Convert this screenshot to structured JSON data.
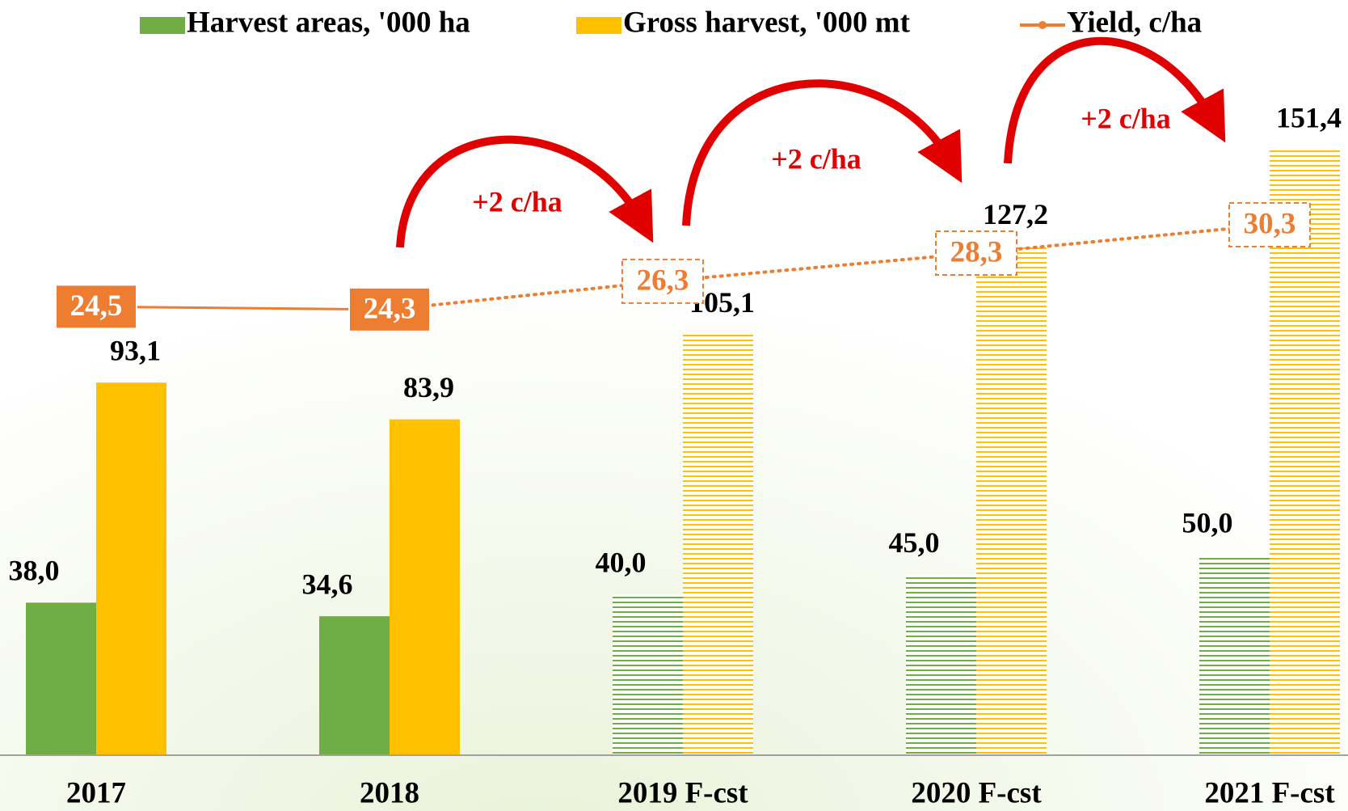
{
  "chart_data": {
    "type": "bar",
    "categories": [
      "2017",
      "2018",
      "2019 F-cst",
      "2020 F-cst",
      "2021 F-cst"
    ],
    "forecast": [
      false,
      false,
      true,
      true,
      true
    ],
    "series": [
      {
        "name": "Harvest areas, '000 ha",
        "color": "#70ad47",
        "values": [
          38.0,
          34.6,
          40.0,
          45.0,
          50.0
        ],
        "value_labels": [
          "38,0",
          "34,6",
          "40,0",
          "45,0",
          "50,0"
        ]
      },
      {
        "name": "Gross harvest, '000 mt",
        "color": "#ffc000",
        "values": [
          93.1,
          83.9,
          105.1,
          127.2,
          151.4
        ],
        "value_labels": [
          "93,1",
          "83,9",
          "105,1",
          "127,2",
          "151,4"
        ]
      },
      {
        "name": "Yield, c/ha",
        "type": "line",
        "axis": "y2",
        "color": "#ed7d31",
        "values": [
          24.5,
          24.3,
          26.3,
          28.3,
          30.3
        ],
        "value_labels": [
          "24,5",
          "24,3",
          "26,3",
          "28,3",
          "30,3"
        ]
      }
    ],
    "annotations": [
      {
        "text": "+2 c/ha"
      },
      {
        "text": "+2 c/ha"
      },
      {
        "text": "+2 c/ha"
      }
    ],
    "ylim": [
      0,
      180
    ],
    "y2lim": [
      -7.2,
      43.7
    ],
    "legend": "top"
  }
}
